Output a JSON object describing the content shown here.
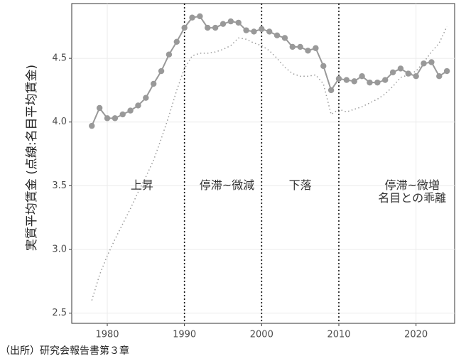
{
  "chart_data": {
    "type": "line",
    "y_label": "実質平均賃金 (点線:名目平均賃金)",
    "caption": "（出所）研究会報告書第３章",
    "x": [
      1978,
      1979,
      1980,
      1981,
      1982,
      1983,
      1984,
      1985,
      1986,
      1987,
      1988,
      1989,
      1990,
      1991,
      1992,
      1993,
      1994,
      1995,
      1996,
      1997,
      1998,
      1999,
      2000,
      2001,
      2002,
      2003,
      2004,
      2005,
      2006,
      2007,
      2008,
      2009,
      2010,
      2011,
      2012,
      2013,
      2014,
      2015,
      2016,
      2017,
      2018,
      2019,
      2020,
      2021,
      2022,
      2023,
      2024
    ],
    "series": [
      {
        "style": "solid",
        "color": "#999999",
        "values": [
          3.97,
          4.11,
          4.03,
          4.03,
          4.06,
          4.09,
          4.13,
          4.19,
          4.3,
          4.4,
          4.53,
          4.63,
          4.74,
          4.82,
          4.83,
          4.74,
          4.74,
          4.77,
          4.79,
          4.78,
          4.72,
          4.71,
          4.73,
          4.71,
          4.68,
          4.66,
          4.59,
          4.59,
          4.56,
          4.58,
          4.44,
          4.25,
          4.34,
          4.33,
          4.32,
          4.36,
          4.31,
          4.31,
          4.33,
          4.39,
          4.42,
          4.38,
          4.36,
          4.46,
          4.47,
          4.36,
          4.4
        ]
      },
      {
        "style": "dotted",
        "color": "#999999",
        "values": [
          2.6,
          2.8,
          2.95,
          3.08,
          3.2,
          3.32,
          3.45,
          3.57,
          3.7,
          3.87,
          4.05,
          4.25,
          4.42,
          4.52,
          4.54,
          4.54,
          4.55,
          4.57,
          4.6,
          4.66,
          4.65,
          4.62,
          4.6,
          4.56,
          4.5,
          4.43,
          4.38,
          4.36,
          4.36,
          4.37,
          4.3,
          4.06,
          4.1,
          4.08,
          4.1,
          4.12,
          4.15,
          4.18,
          4.22,
          4.28,
          4.35,
          4.37,
          4.4,
          4.47,
          4.55,
          4.62,
          4.75
        ]
      }
    ],
    "vlines": [
      1990,
      2000,
      2010
    ],
    "annotations": [
      {
        "text": "上昇",
        "x": 1984.5,
        "y": 3.5
      },
      {
        "text": "停滞~微減",
        "x": 1995.5,
        "y": 3.5
      },
      {
        "text": "下落",
        "x": 2005,
        "y": 3.5
      },
      {
        "text": "停滞~微増",
        "x": 2019.5,
        "y": 3.5
      },
      {
        "text": "名目との乖離",
        "x": 2019.5,
        "y": 3.4
      }
    ],
    "xlim": [
      1975.4,
      2025
    ],
    "ylim": [
      2.42,
      4.93
    ],
    "xticks": [
      1980,
      1990,
      2000,
      2010,
      2020
    ],
    "yticks": [
      2.5,
      {
        "value": 3,
        "label": "3.0"
      },
      3.5,
      {
        "value": 4,
        "label": "4.0"
      },
      4.5
    ],
    "grid": true
  }
}
